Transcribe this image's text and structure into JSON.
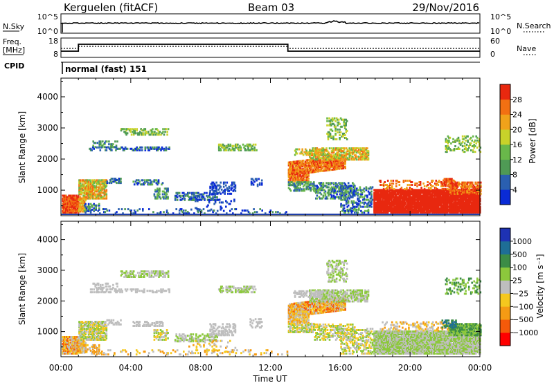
{
  "header": {
    "station": "Kerguelen (fitACF)",
    "beam": "Beam 03",
    "date": "29/Nov/2016"
  },
  "panels": {
    "nsky": {
      "label": "N.Sky",
      "left_top": "10^5",
      "left_bottom": "10^0",
      "right_top": "10^5",
      "right_bottom": "10^0",
      "right_label": "N.Search"
    },
    "freq": {
      "label_line1": "Freq.",
      "label_line2": "[MHz]",
      "left_top": "18",
      "left_bottom": "8",
      "right_top": "60",
      "right_bottom": "0",
      "right_label": "Nave"
    },
    "cpid": {
      "label": "CPID",
      "mode": "normal (fast) 151"
    }
  },
  "colors": {
    "power": [
      "#0a2bd6",
      "#2a5fb0",
      "#4f9a55",
      "#69b84a",
      "#c8d22a",
      "#f0a21a",
      "#f27012",
      "#e8280f"
    ],
    "velocity": [
      "#ff0000",
      "#f55a0a",
      "#f59b14",
      "#f5c81e",
      "#bebebe",
      "#8cc83c",
      "#3c8c46",
      "#1e6e96",
      "#1e32b4"
    ]
  },
  "chart_data": [
    {
      "type": "heatmap",
      "panel": "power",
      "ylabel": "Slant Range [km]",
      "ylim": [
        180,
        4600
      ],
      "yticks": [
        "1000",
        "2000",
        "3000",
        "4000"
      ],
      "ytick_values": [
        1000,
        2000,
        3000,
        4000
      ],
      "xlim": [
        0,
        24
      ],
      "colorbar": {
        "label": "Power [dB]",
        "ticks": [
          "4",
          "8",
          "12",
          "16",
          "20",
          "24",
          "28"
        ],
        "range": [
          0,
          32
        ]
      }
    },
    {
      "type": "heatmap",
      "panel": "velocity",
      "ylabel": "Slant Range [km]",
      "ylim": [
        180,
        4600
      ],
      "yticks": [
        "1000",
        "2000",
        "3000",
        "4000"
      ],
      "ytick_values": [
        1000,
        2000,
        3000,
        4000
      ],
      "xlim": [
        0,
        24
      ],
      "xticks": [
        "00:00",
        "04:00",
        "08:00",
        "12:00",
        "16:00",
        "20:00",
        "00:00"
      ],
      "xlabel": "Time UT",
      "colorbar": {
        "label": "Velocity [m s⁻¹]",
        "ticks": [
          "1000",
          "500",
          "100",
          "25",
          "−25",
          "−100",
          "−500",
          "−1000"
        ]
      }
    }
  ]
}
